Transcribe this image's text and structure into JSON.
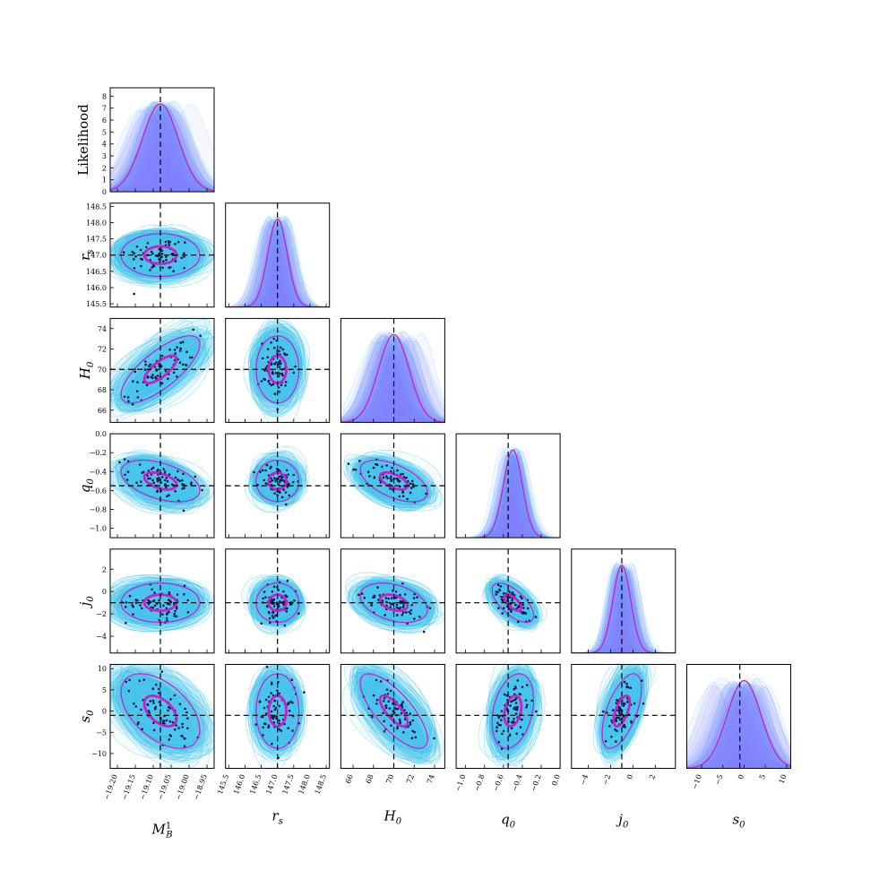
{
  "chart_data": {
    "type": "corner",
    "y_axis_labels": [
      {
        "main": "Likelihood",
        "sub": "",
        "sup": "",
        "italic": false
      },
      {
        "main": "r",
        "sub": "s",
        "sup": "",
        "italic": true
      },
      {
        "main": "H",
        "sub": "0",
        "sup": "",
        "italic": true
      },
      {
        "main": "q",
        "sub": "0",
        "sup": "",
        "italic": true
      },
      {
        "main": "j",
        "sub": "0",
        "sup": "",
        "italic": true
      },
      {
        "main": "s",
        "sub": "0",
        "sup": "",
        "italic": true
      }
    ],
    "x_axis_labels": [
      {
        "main": "M",
        "sub": "B",
        "sup": "1",
        "italic": true
      },
      {
        "main": "r",
        "sub": "s",
        "sup": "",
        "italic": true
      },
      {
        "main": "H",
        "sub": "0",
        "sup": "",
        "italic": true
      },
      {
        "main": "q",
        "sub": "0",
        "sup": "",
        "italic": true
      },
      {
        "main": "j",
        "sub": "0",
        "sup": "",
        "italic": true
      },
      {
        "main": "s",
        "sub": "0",
        "sup": "",
        "italic": true
      }
    ],
    "params": [
      {
        "name": "M_B^1",
        "lim": [
          -19.22,
          -18.93
        ],
        "truth": -19.08,
        "mean": -19.08,
        "sd": 0.05,
        "ticks": [
          -19.2,
          -19.15,
          -19.1,
          -19.05,
          -19.0,
          -18.95
        ],
        "tick_labels": [
          "−19.20",
          "−19.15",
          "−19.10",
          "−19.05",
          "−19.00",
          "−18.95"
        ]
      },
      {
        "name": "r_s",
        "lim": [
          145.4,
          148.6
        ],
        "truth": 147.0,
        "mean": 147.0,
        "sd": 0.3,
        "ticks": [
          145.5,
          146.0,
          146.5,
          147.0,
          147.5,
          148.0,
          148.5
        ],
        "tick_labels": [
          "145.5",
          "146.0",
          "146.5",
          "147.0",
          "147.5",
          "148.0",
          "148.5"
        ]
      },
      {
        "name": "H_0",
        "lim": [
          64.8,
          75.0
        ],
        "truth": 70.0,
        "mean": 70.0,
        "sd": 1.5,
        "ticks": [
          66,
          68,
          70,
          72,
          74
        ],
        "tick_labels": [
          "66",
          "68",
          "70",
          "72",
          "74"
        ]
      },
      {
        "name": "q_0",
        "lim": [
          -1.1,
          0.0
        ],
        "truth": -0.55,
        "mean": -0.5,
        "sd": 0.1,
        "ticks": [
          -1.0,
          -0.8,
          -0.6,
          -0.4,
          -0.2,
          0.0
        ],
        "tick_labels": [
          "−1.0",
          "−0.8",
          "−0.6",
          "−0.4",
          "−0.2",
          "0.0"
        ]
      },
      {
        "name": "j_0",
        "lim": [
          -5.5,
          3.8
        ],
        "truth": -1.0,
        "mean": -1.0,
        "sd": 0.8,
        "ticks": [
          -4,
          -2,
          0,
          2
        ],
        "tick_labels": [
          "−4",
          "−2",
          "0",
          "2"
        ]
      },
      {
        "name": "s_0",
        "lim": [
          -13.5,
          11.0
        ],
        "truth": -1.0,
        "mean": 0.0,
        "sd": 4.0,
        "ticks": [
          -10,
          -5,
          0,
          5,
          10
        ],
        "tick_labels": [
          "−10",
          "−5",
          "0",
          "5",
          "10"
        ]
      }
    ],
    "likelihood_axis": {
      "lim": [
        0,
        8.7
      ],
      "ticks": [
        0,
        1,
        2,
        3,
        4,
        5,
        6,
        7,
        8
      ],
      "tick_labels": [
        "0",
        "1",
        "2",
        "3",
        "4",
        "5",
        "6",
        "7",
        "8"
      ]
    },
    "correlations": {
      "1-0": 0.0,
      "2-0": 0.75,
      "2-1": 0.0,
      "3-0": -0.45,
      "3-1": 0.0,
      "3-2": -0.55,
      "4-0": 0.0,
      "4-1": 0.0,
      "4-2": -0.35,
      "4-3": -0.65,
      "5-0": -0.5,
      "5-1": 0.0,
      "5-2": -0.75,
      "5-3": 0.3,
      "5-4": 0.6
    },
    "colors": {
      "fiducial": "#c81fc8",
      "samples": "#33c1f0",
      "hist_fill": "#8080ff",
      "truth_line": "#000000",
      "points": "#0a1a4a"
    },
    "grid": false,
    "legend": "none"
  }
}
